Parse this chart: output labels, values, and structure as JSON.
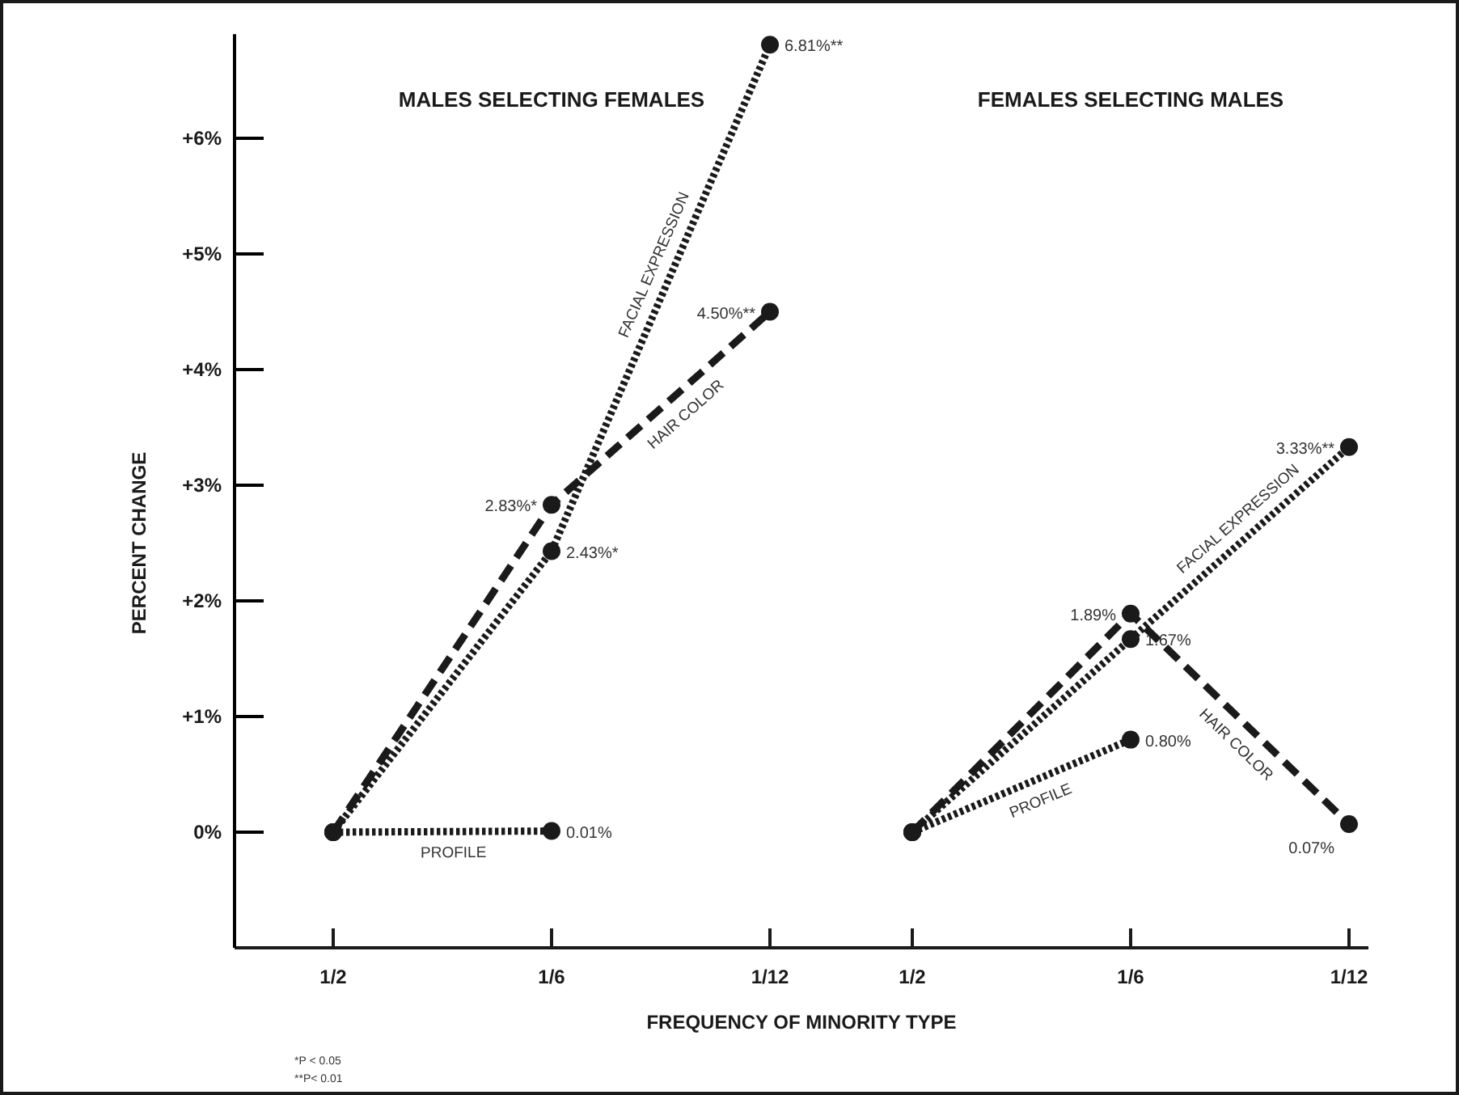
{
  "chart_data": [
    {
      "type": "line",
      "title": "MALES SELECTING FEMALES",
      "xlabel": "FREQUENCY OF MINORITY TYPE",
      "ylabel": "PERCENT CHANGE",
      "categories": [
        "1/2",
        "1/6",
        "1/12"
      ],
      "ylim": [
        -1,
        6.9
      ],
      "yticks": [
        {
          "value": 6,
          "label": "+6%"
        },
        {
          "value": 5,
          "label": "+5%"
        },
        {
          "value": 4,
          "label": "+4%"
        },
        {
          "value": 3,
          "label": "+3%"
        },
        {
          "value": 2,
          "label": "+2%"
        },
        {
          "value": 1,
          "label": "+1%"
        },
        {
          "value": 0,
          "label": "0%"
        }
      ],
      "marker": "circle",
      "series": [
        {
          "name": "FACIAL EXPRESSION",
          "color": "#1a1a1a",
          "line_style": "dotted",
          "values": [
            0,
            2.43,
            6.81
          ],
          "value_labels": [
            null,
            "2.43%*",
            "6.81%**"
          ]
        },
        {
          "name": "HAIR COLOR",
          "color": "#1a1a1a",
          "line_style": "dashed",
          "values": [
            0,
            2.83,
            4.5
          ],
          "value_labels": [
            null,
            "2.83%*",
            "4.50%**"
          ]
        },
        {
          "name": "PROFILE",
          "color": "#1a1a1a",
          "line_style": "dotted",
          "values": [
            0,
            0.01,
            null
          ],
          "value_labels": [
            null,
            "0.01%",
            null
          ]
        }
      ],
      "annotations": [
        "*P < 0.05",
        "**P< 0.01"
      ]
    },
    {
      "type": "line",
      "title": "FEMALES SELECTING MALES",
      "categories": [
        "1/2",
        "1/6",
        "1/12"
      ],
      "tick_labels": "x",
      "marker": "circle",
      "series": [
        {
          "name": "FACIAL EXPRESSION",
          "color": "#1a1a1a",
          "line_style": "dotted",
          "values": [
            0,
            1.67,
            3.33
          ],
          "value_labels": [
            null,
            "1.67%",
            "3.33%**"
          ]
        },
        {
          "name": "HAIR COLOR",
          "color": "#1a1a1a",
          "line_style": "dashed",
          "values": [
            0,
            1.89,
            0.07
          ],
          "value_labels": [
            null,
            "1.89%",
            "0.07%"
          ]
        },
        {
          "name": "PROFILE",
          "color": "#1a1a1a",
          "line_style": "dotted",
          "values": [
            0,
            0.8,
            null
          ],
          "value_labels": [
            null,
            "0.80%",
            null
          ]
        }
      ]
    }
  ]
}
